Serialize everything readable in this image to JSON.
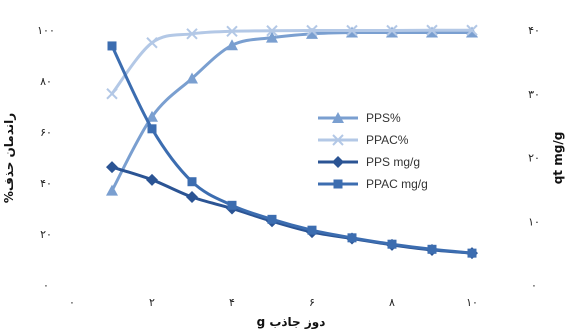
{
  "chart_data": {
    "type": "line",
    "title": "",
    "xlabel": "دوز جاذب g",
    "ylabel_left": "راندمان حذف%",
    "ylabel_right": "qt mg/g",
    "x_ticks": [
      "۰",
      "۲",
      "۴",
      "۶",
      "۸",
      "۱۰"
    ],
    "y_left_ticks": [
      "۰",
      "۲۰",
      "۴۰",
      "۶۰",
      "۸۰",
      "۱۰۰"
    ],
    "y_right_ticks": [
      "۰",
      "۱۰",
      "۲۰",
      "۳۰",
      "۴۰"
    ],
    "xlim": [
      0,
      10
    ],
    "ylim_left": [
      0,
      100
    ],
    "ylim_right": [
      0,
      40
    ],
    "grid": false,
    "legend_position": "center-right",
    "series": [
      {
        "name": "PPS%",
        "axis": "left",
        "marker": "triangle",
        "color": "#7a9fd0",
        "x": [
          1,
          2,
          3,
          4,
          5,
          6,
          7,
          8,
          9,
          10
        ],
        "y": [
          37,
          66,
          81,
          94,
          97,
          98.5,
          99,
          99,
          99,
          99
        ]
      },
      {
        "name": "PPAC%",
        "axis": "left",
        "marker": "x",
        "color": "#b3c8e6",
        "x": [
          1,
          2,
          3,
          4,
          5,
          6,
          7,
          8,
          9,
          10
        ],
        "y": [
          75,
          95,
          98.5,
          99.5,
          99.7,
          99.8,
          99.8,
          99.8,
          99.9,
          99.9
        ]
      },
      {
        "name": "PPS mg/g",
        "axis": "right",
        "marker": "diamond",
        "color": "#2b5494",
        "x": [
          1,
          2,
          3,
          4,
          5,
          6,
          7,
          8,
          9,
          10
        ],
        "y": [
          18.5,
          16.5,
          13.8,
          12,
          10,
          8.3,
          7.3,
          6.3,
          5.5,
          5
        ]
      },
      {
        "name": "PPAC mg/g",
        "axis": "right",
        "marker": "square",
        "color": "#3c6db0",
        "x": [
          1,
          2,
          3,
          4,
          5,
          6,
          7,
          8,
          9,
          10
        ],
        "y": [
          37.5,
          24.5,
          16.2,
          12.5,
          10.3,
          8.6,
          7.4,
          6.4,
          5.6,
          5
        ]
      }
    ]
  }
}
